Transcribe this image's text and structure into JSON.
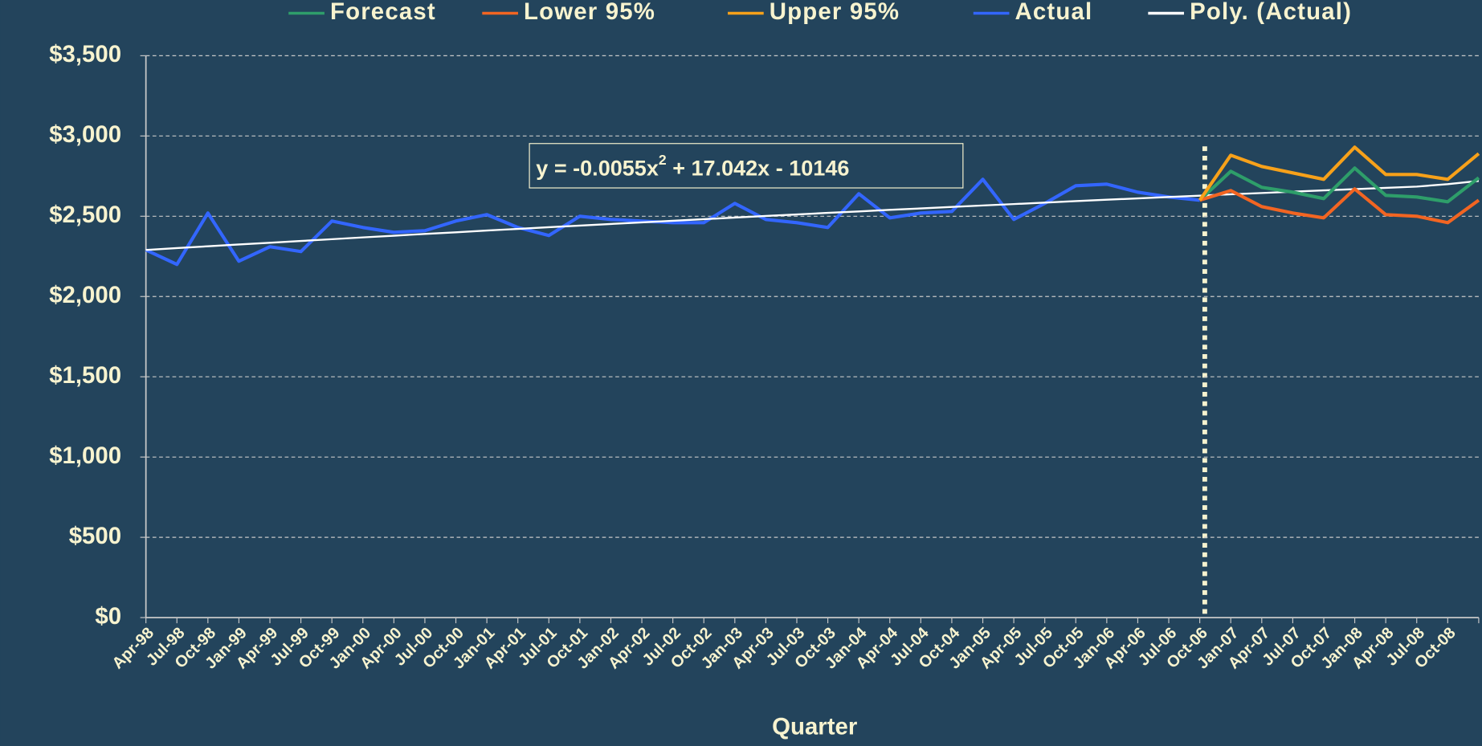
{
  "chart_data": {
    "type": "line",
    "x_label": "Quarter",
    "annotation": {
      "before": "y = -0.0055x",
      "sup": "2",
      "after": " + 17.042x - 10146"
    },
    "categories": [
      "Apr-98",
      "Jul-98",
      "Oct-98",
      "Jan-99",
      "Apr-99",
      "Jul-99",
      "Oct-99",
      "Jan-00",
      "Apr-00",
      "Jul-00",
      "Oct-00",
      "Jan-01",
      "Apr-01",
      "Jul-01",
      "Oct-01",
      "Jan-02",
      "Apr-02",
      "Jul-02",
      "Oct-02",
      "Jan-03",
      "Apr-03",
      "Jul-03",
      "Oct-03",
      "Jan-04",
      "Apr-04",
      "Jul-04",
      "Oct-04",
      "Jan-05",
      "Apr-05",
      "Jul-05",
      "Oct-05",
      "Jan-06",
      "Apr-06",
      "Jul-06",
      "Oct-06",
      "Jan-07",
      "Apr-07",
      "Jul-07",
      "Oct-07",
      "Jan-08",
      "Apr-08",
      "Jul-08",
      "Oct-08",
      null
    ],
    "series": [
      {
        "name": "Forecast",
        "color": "#2e9e6a",
        "values": [
          null,
          null,
          null,
          null,
          null,
          null,
          null,
          null,
          null,
          null,
          null,
          null,
          null,
          null,
          null,
          null,
          null,
          null,
          null,
          null,
          null,
          null,
          null,
          null,
          null,
          null,
          null,
          null,
          null,
          null,
          null,
          null,
          null,
          null,
          2600,
          2780,
          2680,
          2650,
          2610,
          2800,
          2630,
          2620,
          2590,
          2740
        ]
      },
      {
        "name": "Lower 95%",
        "color": "#f26522",
        "values": [
          null,
          null,
          null,
          null,
          null,
          null,
          null,
          null,
          null,
          null,
          null,
          null,
          null,
          null,
          null,
          null,
          null,
          null,
          null,
          null,
          null,
          null,
          null,
          null,
          null,
          null,
          null,
          null,
          null,
          null,
          null,
          null,
          null,
          null,
          2600,
          2660,
          2560,
          2520,
          2490,
          2670,
          2510,
          2500,
          2460,
          2600
        ]
      },
      {
        "name": "Upper 95%",
        "color": "#f7a11a",
        "values": [
          null,
          null,
          null,
          null,
          null,
          null,
          null,
          null,
          null,
          null,
          null,
          null,
          null,
          null,
          null,
          null,
          null,
          null,
          null,
          null,
          null,
          null,
          null,
          null,
          null,
          null,
          null,
          null,
          null,
          null,
          null,
          null,
          null,
          null,
          2600,
          2880,
          2810,
          2770,
          2730,
          2930,
          2760,
          2760,
          2730,
          2890
        ]
      },
      {
        "name": "Actual",
        "color": "#3366ff",
        "values": [
          2290,
          2200,
          2520,
          2220,
          2310,
          2280,
          2470,
          2430,
          2400,
          2410,
          2470,
          2510,
          2430,
          2380,
          2500,
          2480,
          2470,
          2460,
          2460,
          2580,
          2480,
          2460,
          2430,
          2640,
          2490,
          2520,
          2530,
          2730,
          2480,
          2580,
          2690,
          2700,
          2650,
          2620,
          2600,
          null,
          null,
          null,
          null,
          null,
          null,
          null,
          null,
          null
        ]
      },
      {
        "name": "Poly. (Actual)",
        "color": "#ffffff",
        "values": [
          2290,
          2302,
          2313,
          2324,
          2335,
          2346,
          2357,
          2368,
          2379,
          2390,
          2400,
          2411,
          2421,
          2432,
          2442,
          2452,
          2462,
          2472,
          2482,
          2492,
          2502,
          2511,
          2521,
          2530,
          2540,
          2549,
          2558,
          2567,
          2576,
          2585,
          2594,
          2603,
          2611,
          2620,
          2628,
          2637,
          2645,
          2653,
          2661,
          2669,
          2677,
          2685,
          2700,
          2720
        ]
      }
    ],
    "ylim": [
      0,
      3500
    ],
    "yticks": [
      {
        "value": 0,
        "label": "$0"
      },
      {
        "value": 500,
        "label": "$500"
      },
      {
        "value": 1000,
        "label": "$1,000"
      },
      {
        "value": 1500,
        "label": "$1,500"
      },
      {
        "value": 2000,
        "label": "$2,000"
      },
      {
        "value": 2500,
        "label": "$2,500"
      },
      {
        "value": 3000,
        "label": "$3,000"
      },
      {
        "value": 3500,
        "label": "$3,500"
      }
    ],
    "grid": true
  }
}
